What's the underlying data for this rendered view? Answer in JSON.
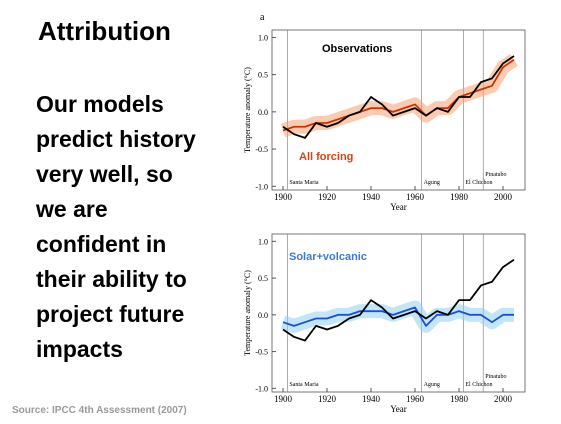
{
  "slide": {
    "title": "Attribution",
    "body": [
      "Our models",
      "predict history",
      "very well, so",
      "we are",
      "confident in",
      "their ability to",
      "project future",
      "impacts"
    ],
    "source": "Source: IPCC 4th Assessment (2007)"
  },
  "chart_data": [
    {
      "type": "line",
      "panel": "a",
      "ylabel": "Temperature anomaly (°C)",
      "xlabel": "Year",
      "xlim": [
        1895,
        2010
      ],
      "ylim": [
        -1.05,
        1.1
      ],
      "xticks": [
        1900,
        1920,
        1940,
        1960,
        1980,
        2000
      ],
      "yticks": [
        {
          "value": 1,
          "label": "1.0"
        },
        {
          "value": 0.5,
          "label": "0.5"
        },
        {
          "value": 0,
          "label": "0.0"
        },
        {
          "value": -0.5,
          "label": "-0.5"
        },
        {
          "value": -1,
          "label": "-1.0"
        }
      ],
      "volcanoes": [
        {
          "name": "Santa Maria",
          "year": 1902
        },
        {
          "name": "Agung",
          "year": 1963
        },
        {
          "name": "El Chichon",
          "year": 1982
        },
        {
          "name": "Pinatubo",
          "year": 1991
        }
      ],
      "x": [
        1900,
        1905,
        1910,
        1915,
        1920,
        1925,
        1930,
        1935,
        1940,
        1945,
        1950,
        1955,
        1960,
        1965,
        1970,
        1975,
        1980,
        1985,
        1990,
        1995,
        2000,
        2005
      ],
      "series": [
        {
          "name": "All forcing",
          "color": "#cc3300",
          "band_color": "#f5a070",
          "values": [
            -0.25,
            -0.2,
            -0.2,
            -0.15,
            -0.15,
            -0.1,
            -0.05,
            0.0,
            0.05,
            0.05,
            0.0,
            0.05,
            0.1,
            -0.05,
            0.05,
            0.05,
            0.2,
            0.25,
            0.3,
            0.35,
            0.6,
            0.7
          ]
        },
        {
          "name": "Observations",
          "color": "#000000",
          "values": [
            -0.2,
            -0.3,
            -0.35,
            -0.15,
            -0.2,
            -0.15,
            -0.05,
            0.0,
            0.2,
            0.1,
            -0.05,
            0.0,
            0.05,
            -0.05,
            0.05,
            0.0,
            0.2,
            0.2,
            0.4,
            0.45,
            0.65,
            0.75
          ]
        }
      ]
    },
    {
      "type": "line",
      "ylabel": "Temperature anomaly (°C)",
      "xlabel": "Year",
      "xlim": [
        1895,
        2010
      ],
      "ylim": [
        -1.05,
        1.1
      ],
      "xticks": [
        1900,
        1920,
        1940,
        1960,
        1980,
        2000
      ],
      "yticks": [
        {
          "value": 1,
          "label": "1.0"
        },
        {
          "value": 0.5,
          "label": "0.5"
        },
        {
          "value": 0,
          "label": "0.0"
        },
        {
          "value": -0.5,
          "label": "-0.5"
        },
        {
          "value": -1,
          "label": "-1.0"
        }
      ],
      "volcanoes": [
        {
          "name": "Santa Maria",
          "year": 1902
        },
        {
          "name": "Agung",
          "year": 1963
        },
        {
          "name": "El Chichon",
          "year": 1982
        },
        {
          "name": "Pinatubo",
          "year": 1991
        }
      ],
      "x": [
        1900,
        1905,
        1910,
        1915,
        1920,
        1925,
        1930,
        1935,
        1940,
        1945,
        1950,
        1955,
        1960,
        1965,
        1970,
        1975,
        1980,
        1985,
        1990,
        1995,
        2000,
        2005
      ],
      "series": [
        {
          "name": "Solar+volcanic",
          "color": "#1a4fd6",
          "band_color": "#8fd0f2",
          "values": [
            -0.1,
            -0.15,
            -0.1,
            -0.05,
            -0.05,
            0.0,
            0.0,
            0.05,
            0.05,
            0.05,
            0.0,
            0.05,
            0.1,
            -0.15,
            0.0,
            0.0,
            0.05,
            0.0,
            0.0,
            -0.1,
            0.0,
            0.0
          ]
        },
        {
          "color": "#000000",
          "values": [
            -0.2,
            -0.3,
            -0.35,
            -0.15,
            -0.2,
            -0.15,
            -0.05,
            0.0,
            0.2,
            0.1,
            -0.05,
            0.0,
            0.05,
            -0.05,
            0.05,
            0.0,
            0.2,
            0.2,
            0.4,
            0.45,
            0.65,
            0.75
          ]
        }
      ]
    }
  ]
}
